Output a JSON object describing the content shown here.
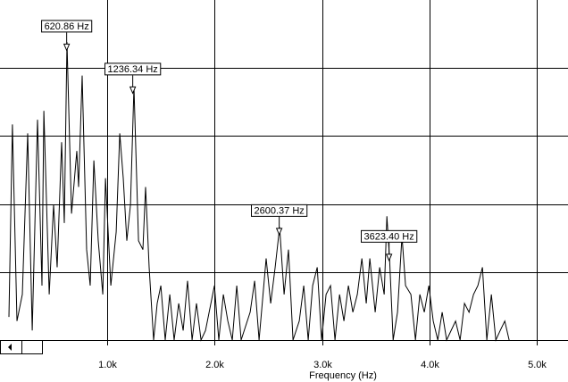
{
  "chart_data": {
    "type": "line",
    "x_label": "Frequency (Hz)",
    "color": "#000000",
    "grid": true,
    "xlim": [
      0,
      5290
    ],
    "ylim": [
      0,
      5
    ],
    "xticks": [
      {
        "value": 1000,
        "label": "1.0k"
      },
      {
        "value": 2000,
        "label": "2.0k"
      },
      {
        "value": 3000,
        "label": "3.0k"
      },
      {
        "value": 4000,
        "label": "4.0k"
      },
      {
        "value": 5000,
        "label": "5.0k"
      }
    ],
    "yticks": [
      1,
      2,
      3,
      4
    ],
    "x": [
      83,
      116,
      158,
      208,
      258,
      300,
      349,
      391,
      408,
      458,
      499,
      532,
      574,
      599,
      624,
      666,
      715,
      732,
      765,
      807,
      840,
      874,
      915,
      957,
      982,
      1032,
      1082,
      1115,
      1148,
      1181,
      1215,
      1248,
      1290,
      1331,
      1356,
      1389,
      1431,
      1464,
      1498,
      1539,
      1581,
      1622,
      1664,
      1706,
      1747,
      1789,
      1830,
      1872,
      1914,
      1997,
      2038,
      2080,
      2122,
      2163,
      2205,
      2246,
      2330,
      2371,
      2413,
      2479,
      2521,
      2563,
      2604,
      2646,
      2687,
      2729,
      2787,
      2829,
      2870,
      2912,
      2954,
      2995,
      3037,
      3078,
      3120,
      3162,
      3203,
      3245,
      3286,
      3328,
      3370,
      3411,
      3444,
      3494,
      3536,
      3578,
      3603,
      3628,
      3661,
      3702,
      3744,
      3777,
      3827,
      3869,
      3910,
      3952,
      3994,
      4035,
      4077,
      4118,
      4160,
      4243,
      4285,
      4326,
      4368,
      4410,
      4451,
      4493,
      4534,
      4576,
      4618,
      4659,
      4701,
      4742
    ],
    "values": [
      0.34,
      3.17,
      0.28,
      0.67,
      3.04,
      0.14,
      3.24,
      0.8,
      3.37,
      0.67,
      1.99,
      1.07,
      2.91,
      1.72,
      4.38,
      1.86,
      2.78,
      2.25,
      3.89,
      1.33,
      0.8,
      2.64,
      1.46,
      0.67,
      2.38,
      0.8,
      1.59,
      3.04,
      2.38,
      1.46,
      1.99,
      3.72,
      1.46,
      1.33,
      2.25,
      1.07,
      0,
      0.54,
      0.8,
      0,
      0.67,
      0,
      0.54,
      0.14,
      0.87,
      0,
      0.54,
      0,
      0.14,
      0.8,
      0,
      0.67,
      0.28,
      0,
      0.8,
      0,
      0.41,
      0.87,
      0,
      1.2,
      0.54,
      1.07,
      1.66,
      0.67,
      1.33,
      0,
      0.28,
      0.8,
      0,
      0.8,
      1.07,
      0,
      0.67,
      0.8,
      0,
      0.67,
      0.28,
      0.8,
      0.41,
      0.67,
      1.2,
      0.54,
      1.2,
      0.41,
      1.07,
      0.67,
      1.82,
      1.2,
      0,
      0.41,
      1.53,
      0.8,
      0.67,
      0,
      0.67,
      0.41,
      0.8,
      0.28,
      0,
      0.41,
      0,
      0.28,
      0,
      0.54,
      0.41,
      0.67,
      0.8,
      1.07,
      0,
      0.67,
      0,
      0.14,
      0.28,
      0
    ],
    "annotations": [
      {
        "x": 620.86,
        "y": 4.26,
        "label": "620.86 Hz"
      },
      {
        "x": 1236.34,
        "y": 3.63,
        "label": "1236.34 Hz"
      },
      {
        "x": 2600.37,
        "y": 1.55,
        "label": "2600.37 Hz"
      },
      {
        "x": 3623.4,
        "y": 1.17,
        "label": "3623.40 Hz"
      }
    ]
  }
}
